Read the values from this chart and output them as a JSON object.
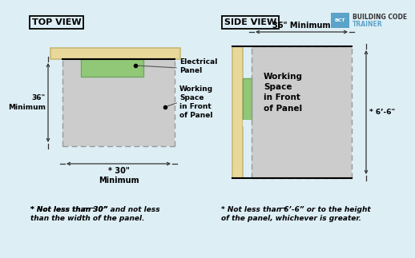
{
  "bg_color": "#ddeef5",
  "wall_color": "#e8d89a",
  "wall_edge_color": "#c8b878",
  "working_space_color": "#cccccc",
  "working_space_edge_color": "#999999",
  "green_color": "#90c878",
  "green_edge_color": "#70a860",
  "line_color": "#333333",
  "top_view_label": "TOP VIEW",
  "side_view_label": "SIDE VIEW",
  "electrical_panel_label": "Electrical\nPanel",
  "working_space_label_top": "Working\nSpace\nin Front\nof Panel",
  "working_space_label_side": "Working\nSpace\nin Front\nof Panel",
  "dim_36_min_top": "36\"\nMinimum",
  "dim_30_min": "* 30\"\nMinimum",
  "dim_36_min_side": "36\" Minimum",
  "dim_6_6": "* 6’-6\"",
  "footnote_top_1": "* Not less than 30” ",
  "footnote_top_and": "and",
  "footnote_top_2": " not less",
  "footnote_top_3": "than the width of the panel.",
  "footnote_side_1": "* Not less than 6’-6” ",
  "footnote_side_or": "or",
  "footnote_side_2": " to the height",
  "footnote_side_3": "of the panel, whichever is greater.",
  "bct_text1": "BUILDING CODE",
  "bct_text2": "TRAINER",
  "logo_color": "#5ba3c9",
  "logo_dark": "#2266aa"
}
